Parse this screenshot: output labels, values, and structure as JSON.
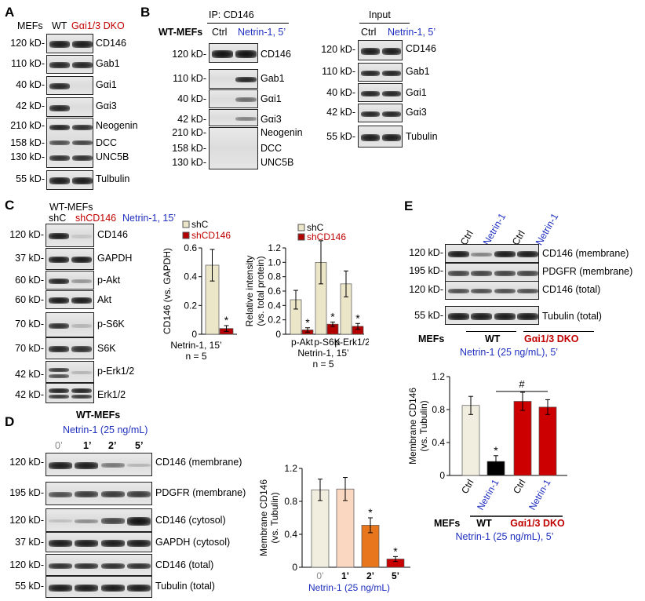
{
  "panelA": {
    "letter": "A",
    "header_mefs": "MEFs",
    "header_wt": "WT",
    "header_dko": "Gαi1/3 DKO",
    "rows": [
      {
        "kd": "120 kD-",
        "label": "CD146"
      },
      {
        "kd": "110 kD-",
        "label": "Gab1"
      },
      {
        "kd": "40 kD-",
        "label": "Gαi1"
      },
      {
        "kd": "42 kD-",
        "label": "Gαi3"
      },
      {
        "kd": "210 kD-",
        "label": "Neogenin"
      },
      {
        "kd": "158 kD-",
        "label": "DCC"
      },
      {
        "kd": "130 kD-",
        "label": "UNC5B"
      },
      {
        "kd": "55 kD-",
        "label": "Tulbulin"
      }
    ]
  },
  "panelB": {
    "letter": "B",
    "ip_title": "IP: CD146",
    "input_title": "Input",
    "wt_mefs": "WT-MEFs",
    "ctrl": "Ctrl",
    "netrin": "Netrin-1, 5’",
    "ip_rows": [
      {
        "kd": "120 kD-",
        "label": "CD146"
      },
      {
        "kd": "110 kD-",
        "label": "Gab1"
      },
      {
        "kd": "40 kD-",
        "label": "Gαi1"
      },
      {
        "kd": "42 kD-",
        "label": "Gαi3"
      },
      {
        "kd": "210 kD-",
        "label": "Neogenin"
      },
      {
        "kd": "158 kD-",
        "label": "DCC"
      },
      {
        "kd": "130 kD-",
        "label": "UNC5B"
      }
    ],
    "input_rows": [
      {
        "kd": "120 kD-",
        "label": "CD146"
      },
      {
        "kd": "110 kD-",
        "label": "Gab1"
      },
      {
        "kd": "40 kD-",
        "label": "Gαi1"
      },
      {
        "kd": "42 kD-",
        "label": "Gαi3"
      },
      {
        "kd": "55 kD-",
        "label": "Tubulin"
      }
    ]
  },
  "panelC": {
    "letter": "C",
    "wt_mefs": "WT-MEFs",
    "shc": "shC",
    "shcd146": "shCD146",
    "netrin": "Netrin-1, 15’",
    "rows": [
      {
        "kd": "120 kD-",
        "label": "CD146"
      },
      {
        "kd": "37 kD-",
        "label": "GAPDH"
      },
      {
        "kd": "60 kD-",
        "label": "p-Akt"
      },
      {
        "kd": "60 kD-",
        "label": "Akt"
      },
      {
        "kd": "70 kD-",
        "label": "p-S6K"
      },
      {
        "kd": "70 kD-",
        "label": "S6K"
      },
      {
        "kd": "42 kD-",
        "label": "p-Erk1/2"
      },
      {
        "kd": "42 kD-",
        "label": "Erk1/2"
      }
    ]
  },
  "panelD": {
    "letter": "D",
    "wt_mefs": "WT-MEFs",
    "netrin": "Netrin-1 (25 ng/mL)",
    "times": [
      "0’",
      "1’",
      "2’",
      "5’"
    ],
    "rows": [
      {
        "kd": "120 kD-",
        "label": "CD146 (membrane)"
      },
      {
        "kd": "195 kD-",
        "label": "PDGFR (membrane)"
      },
      {
        "kd": "120 kD-",
        "label": "CD146 (cytosol)"
      },
      {
        "kd": "37 kD-",
        "label": "GAPDH (cytosol)"
      },
      {
        "kd": "120 kD-",
        "label": "CD146 (total)"
      },
      {
        "kd": "55 kD-",
        "label": "Tubulin (total)"
      }
    ]
  },
  "panelE": {
    "letter": "E",
    "ctrl": "Ctrl",
    "netrin": "Netrin-1",
    "rows": [
      {
        "kd": "120 kD-",
        "label": "CD146 (membrane)"
      },
      {
        "kd": "195 kD-",
        "label": "PDGFR (membrane)"
      },
      {
        "kd": "120 kD-",
        "label": "CD146 (total)"
      },
      {
        "kd": "55 kD-",
        "label": "Tubulin (total)"
      }
    ],
    "mefs": "MEFs",
    "wt": "WT",
    "dko": "Gαi1/3 DKO",
    "treatment": "Netrin-1 (25 ng/mL), 5’"
  },
  "chart_data": [
    {
      "id": "C1",
      "type": "bar",
      "categories": [
        "shC",
        "shCD146"
      ],
      "values": [
        0.48,
        0.04
      ],
      "errors": [
        0.11,
        0.02
      ],
      "significance": [
        "",
        "*"
      ],
      "colors": {
        "shC": "#ece6c8",
        "shCD146": "#b30000"
      },
      "ylabel": "CD146 (vs. GAPDH)",
      "ylim": [
        0,
        0.6
      ],
      "yticks": [
        "0",
        "0.2",
        "0.4",
        "0.6"
      ],
      "xlabel": "Netrin-1, 15’",
      "note": "n = 5",
      "legend": [
        "shC",
        "shCD146"
      ]
    },
    {
      "id": "C2",
      "type": "bar",
      "categories": [
        "p-Akt",
        "p-S6K",
        "p-Erk1/2"
      ],
      "series": [
        {
          "name": "shC",
          "values": [
            0.48,
            1.0,
            0.7
          ],
          "errors": [
            0.13,
            0.3,
            0.18
          ]
        },
        {
          "name": "shCD146",
          "values": [
            0.06,
            0.14,
            0.11
          ],
          "errors": [
            0.03,
            0.03,
            0.04
          ]
        }
      ],
      "significance": [
        "*",
        "*",
        "*"
      ],
      "ylabel": "Relative intensity",
      "ylabel2": "(vs. total protein)",
      "ylim": [
        0,
        1.2
      ],
      "yticks": [
        "0",
        "0.2",
        "0.4",
        "0.6",
        "0.8",
        "1.0",
        "1.2"
      ],
      "xlabel": "Netrin-1, 15’",
      "note": "n = 5",
      "legend": [
        "shC",
        "shCD146"
      ]
    },
    {
      "id": "D",
      "type": "bar",
      "categories": [
        "0’",
        "1’",
        "2’",
        "5’"
      ],
      "values": [
        0.94,
        0.95,
        0.51,
        0.1
      ],
      "errors": [
        0.13,
        0.14,
        0.09,
        0.03
      ],
      "significance": [
        "",
        "",
        "*",
        "*"
      ],
      "colors": [
        "#f2eedf",
        "#fad7c0",
        "#e8761c",
        "#c80000"
      ],
      "ylabel": "Membrane CD146",
      "ylabel2": "(vs. Tubulin)",
      "ylim": [
        0,
        1.2
      ],
      "yticks": [
        "0",
        "0.4",
        "0.8",
        "1.2"
      ],
      "xlabel": "Netrin-1 (25 ng/mL)"
    },
    {
      "id": "E",
      "type": "bar",
      "categories": [
        "Ctrl",
        "Netrin-1",
        "Ctrl",
        "Netrin-1"
      ],
      "values": [
        0.85,
        0.17,
        0.9,
        0.83
      ],
      "errors": [
        0.11,
        0.07,
        0.11,
        0.09
      ],
      "significance": [
        "",
        "*",
        "",
        ""
      ],
      "bracket": "#",
      "colors": [
        "#f2eedf",
        "#000000",
        "#cc0000",
        "#cc0000"
      ],
      "ylabel": "Membrane CD146",
      "ylabel2": "(vs. Tubulin)",
      "ylim": [
        0,
        1.2
      ],
      "yticks": [
        "0",
        "0.4",
        "0.8",
        "1.2"
      ],
      "groups": [
        "WT",
        "Gαi1/3 DKO"
      ],
      "mefs": "MEFs",
      "xlabel": "Netrin-1 (25 ng/mL), 5’"
    }
  ]
}
